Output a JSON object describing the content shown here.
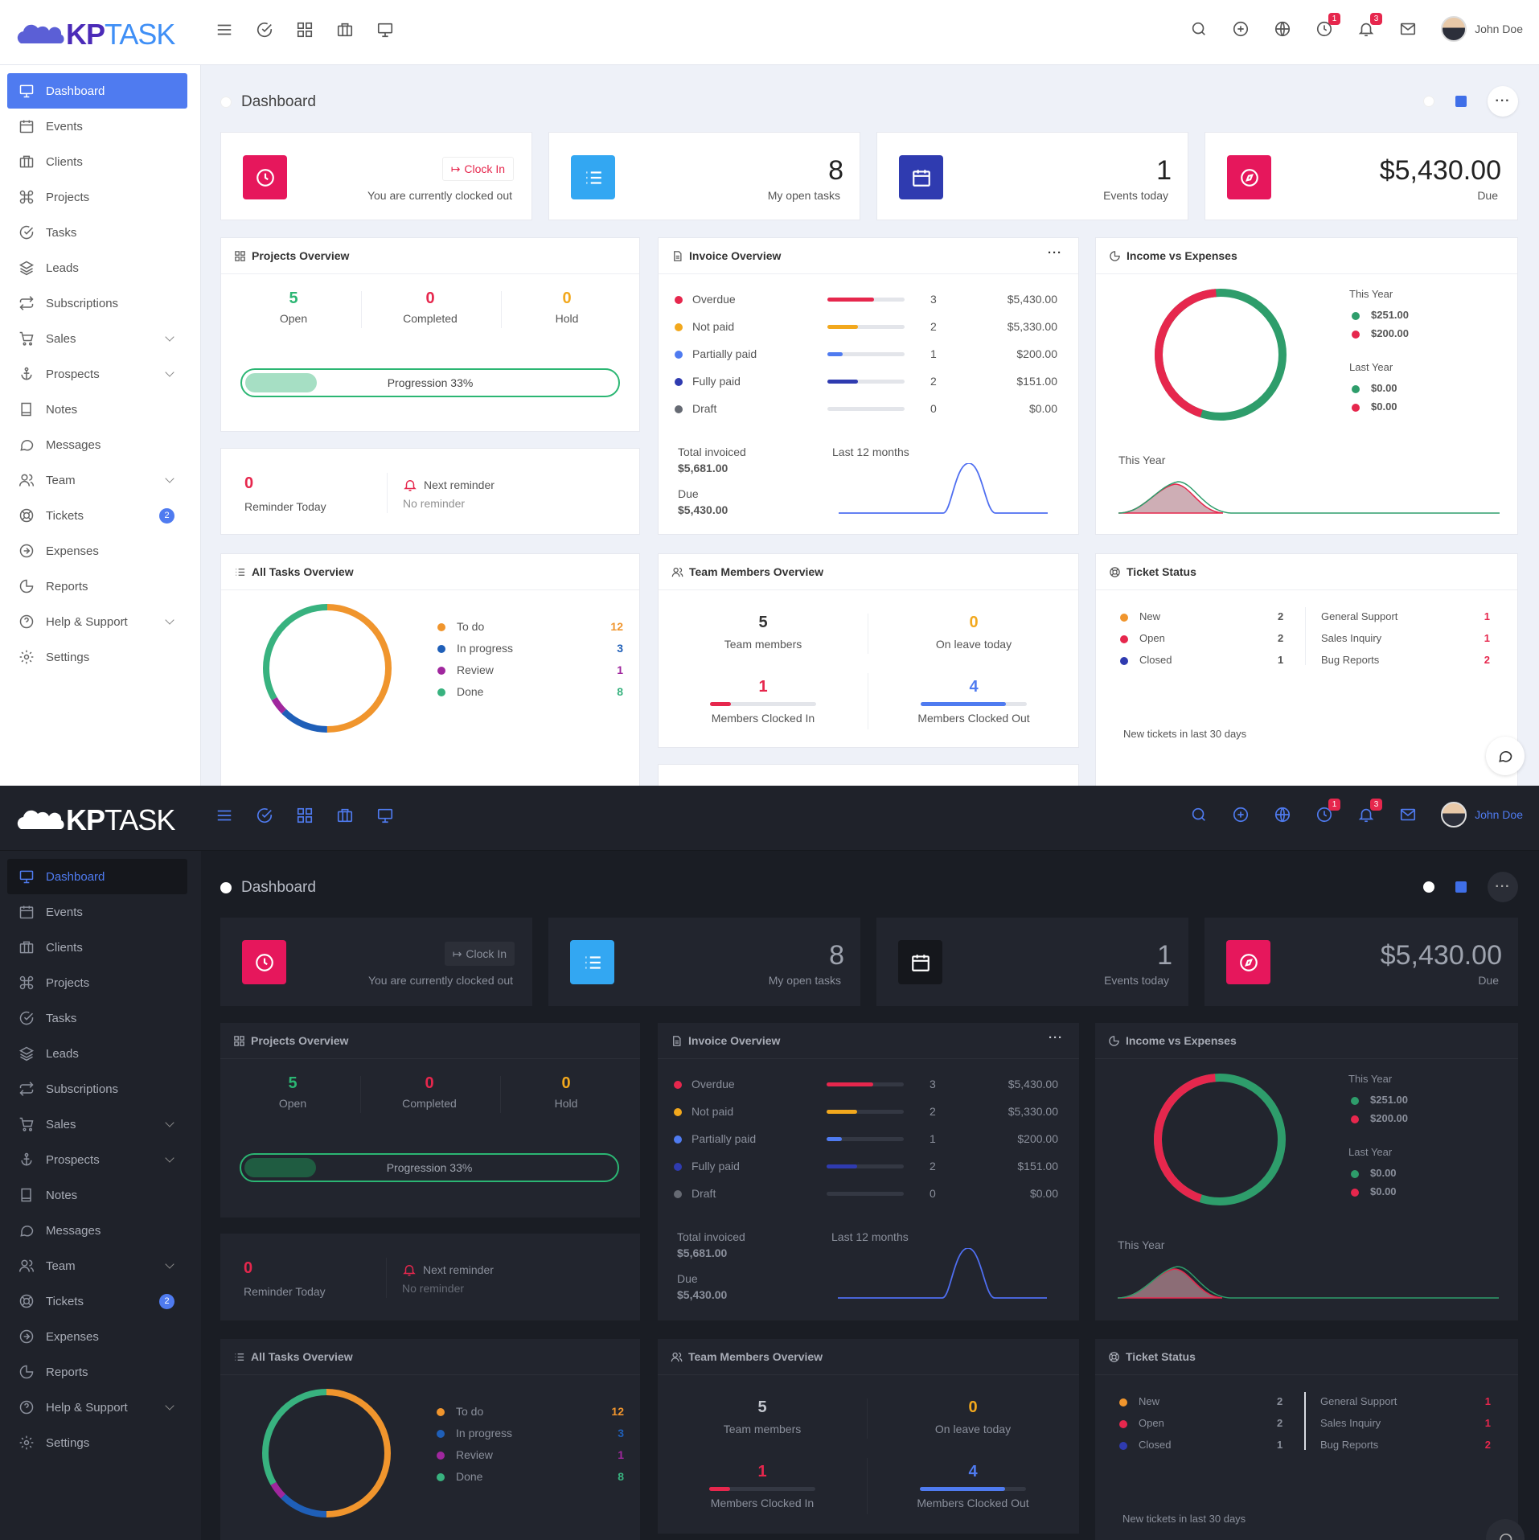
{
  "app": {
    "logo_kp": "KP",
    "logo_task": "TASK",
    "user_name": "John Doe",
    "badge_reminders": "1",
    "badge_notifications": "3"
  },
  "sidebar": {
    "items": [
      {
        "label": "Dashboard",
        "icon": "monitor-icon"
      },
      {
        "label": "Events",
        "icon": "calendar-icon"
      },
      {
        "label": "Clients",
        "icon": "briefcase-icon"
      },
      {
        "label": "Projects",
        "icon": "command-icon"
      },
      {
        "label": "Tasks",
        "icon": "check-circle-icon"
      },
      {
        "label": "Leads",
        "icon": "layers-icon"
      },
      {
        "label": "Subscriptions",
        "icon": "repeat-icon"
      },
      {
        "label": "Sales",
        "icon": "cart-icon"
      },
      {
        "label": "Prospects",
        "icon": "anchor-icon"
      },
      {
        "label": "Notes",
        "icon": "book-icon"
      },
      {
        "label": "Messages",
        "icon": "message-icon"
      },
      {
        "label": "Team",
        "icon": "users-icon"
      },
      {
        "label": "Tickets",
        "icon": "lifebuoy-icon"
      },
      {
        "label": "Expenses",
        "icon": "arrow-circle-icon"
      },
      {
        "label": "Reports",
        "icon": "pie-icon"
      },
      {
        "label": "Help & Support",
        "icon": "help-icon"
      },
      {
        "label": "Settings",
        "icon": "gear-icon"
      }
    ],
    "tickets_badge": "2"
  },
  "page": {
    "title": "Dashboard"
  },
  "stats": {
    "clock": {
      "button": "Clock In",
      "status": "You are currently clocked out"
    },
    "tasks": {
      "value": "8",
      "label": "My open tasks"
    },
    "events": {
      "value": "1",
      "label": "Events today"
    },
    "due": {
      "value": "$5,430.00",
      "label": "Due"
    }
  },
  "projects": {
    "title": "Projects Overview",
    "open_value": "5",
    "open_label": "Open",
    "completed_value": "0",
    "completed_label": "Completed",
    "hold_value": "0",
    "hold_label": "Hold",
    "progress_label": "Progression 33%",
    "progress_fraction": 0.33
  },
  "reminder": {
    "value": "0",
    "label": "Reminder Today",
    "next_label": "Next reminder",
    "next_value": "No reminder"
  },
  "invoice": {
    "title": "Invoice Overview",
    "rows": [
      {
        "label": "Overdue",
        "count": "3",
        "amount": "$5,430.00",
        "color": "#e6274d",
        "fraction": 0.6
      },
      {
        "label": "Not paid",
        "count": "2",
        "amount": "$5,330.00",
        "color": "#f2a81d",
        "fraction": 0.4
      },
      {
        "label": "Partially paid",
        "count": "1",
        "amount": "$200.00",
        "color": "#4f7bf0",
        "fraction": 0.2
      },
      {
        "label": "Fully paid",
        "count": "2",
        "amount": "$151.00",
        "color": "#2f3bb0",
        "fraction": 0.4
      },
      {
        "label": "Draft",
        "count": "0",
        "amount": "$0.00",
        "color": "#666a73",
        "fraction": 0
      }
    ],
    "total_label": "Total invoiced",
    "total_value": "$5,681.00",
    "due_label": "Due",
    "due_value": "$5,430.00",
    "chart_label": "Last 12 months"
  },
  "income": {
    "title": "Income vs Expenses",
    "this_year": "This Year",
    "this_income": "$251.00",
    "this_expense": "$200.00",
    "last_year": "Last Year",
    "last_income": "$0.00",
    "last_expense": "$0.00",
    "chart_label": "This Year",
    "income_color": "#2e9d6b",
    "expense_color": "#e6274d"
  },
  "tasks_overview": {
    "title": "All Tasks Overview",
    "rows": [
      {
        "label": "To do",
        "value": "12",
        "color": "#f0952d"
      },
      {
        "label": "In progress",
        "value": "3",
        "color": "#1f5fb8"
      },
      {
        "label": "Review",
        "value": "1",
        "color": "#a0279e"
      },
      {
        "label": "Done",
        "value": "8",
        "color": "#38b27f"
      }
    ]
  },
  "team": {
    "title": "Team Members Overview",
    "members_value": "5",
    "members_label": "Team members",
    "leave_value": "0",
    "leave_label": "On leave today",
    "in_value": "1",
    "in_label": "Members Clocked In",
    "in_fraction": 0.2,
    "out_value": "4",
    "out_label": "Members Clocked Out",
    "out_fraction": 0.8
  },
  "tickets": {
    "title": "Ticket Status",
    "status": [
      {
        "label": "New",
        "value": "2",
        "color": "#f0952d"
      },
      {
        "label": "Open",
        "value": "2",
        "color": "#e6274d"
      },
      {
        "label": "Closed",
        "value": "1",
        "color": "#2f3bb0"
      }
    ],
    "categories": [
      {
        "label": "General Support",
        "value": "1"
      },
      {
        "label": "Sales Inquiry",
        "value": "1"
      },
      {
        "label": "Bug Reports",
        "value": "2"
      }
    ],
    "footer": "New tickets in last 30 days"
  }
}
